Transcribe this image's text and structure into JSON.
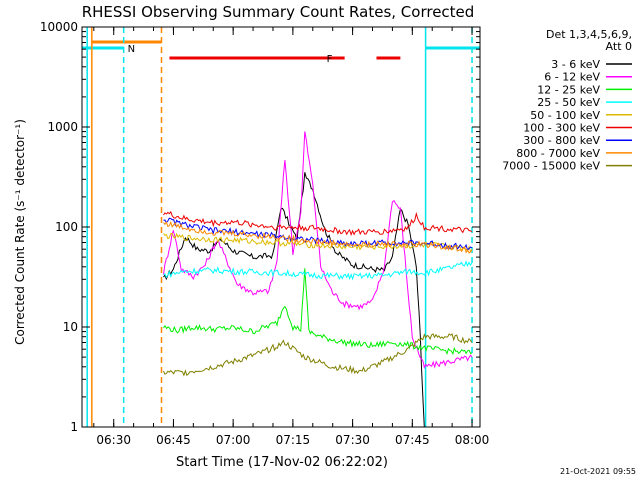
{
  "chart_data": {
    "type": "line",
    "title": "RHESSI Observing Summary Count Rates, Corrected",
    "xlabel": "Start Time (17-Nov-02 06:22:02)",
    "ylabel": "Corrected Count Rate (s⁻¹ detector⁻¹)",
    "yscale": "log",
    "ylim": [
      1,
      10000
    ],
    "xlim": [
      "06:22:02",
      "08:02:00"
    ],
    "x_ticks": [
      "06:30",
      "06:45",
      "07:00",
      "07:15",
      "07:30",
      "07:45",
      "08:00"
    ],
    "y_ticks": [
      "1",
      "10",
      "100",
      "1000",
      "10000"
    ],
    "grid": false,
    "legend_position": "right",
    "legend_header": [
      "Det 1,3,4,5,6,9,",
      "Att 0"
    ],
    "footer": "21-Oct-2021 09:55",
    "flags": [
      {
        "label": "N",
        "color": "#00e5ee",
        "ranges": [
          [
            "06:22:02",
            "06:32:30"
          ],
          [
            "07:48:20",
            "08:02:00"
          ]
        ]
      },
      {
        "label": "F",
        "color": "#ee0000",
        "ranges": [
          [
            "06:44:00",
            "07:28:00"
          ],
          [
            "07:36:00",
            "07:42:00"
          ]
        ]
      },
      {
        "label": "",
        "color": "#ff8800",
        "ranges": [
          [
            "06:24:30",
            "06:42:00"
          ]
        ]
      }
    ],
    "markers": [
      {
        "time": "06:23:20",
        "color": "#00e5ee",
        "style": "solid"
      },
      {
        "time": "06:24:30",
        "color": "#ff8800",
        "style": "solid"
      },
      {
        "time": "06:32:30",
        "color": "#00e5ee",
        "style": "dashed"
      },
      {
        "time": "06:42:00",
        "color": "#ff8800",
        "style": "dashed"
      },
      {
        "time": "07:48:20",
        "color": "#00e5ee",
        "style": "solid"
      },
      {
        "time": "08:00:00",
        "color": "#00e5ee",
        "style": "dashed"
      }
    ],
    "series": [
      {
        "name": "3 - 6 keV",
        "color": "#000000",
        "points": [
          [
            "06:42:30",
            30
          ],
          [
            "06:45",
            38
          ],
          [
            "06:48",
            80
          ],
          [
            "06:51",
            60
          ],
          [
            "06:54",
            58
          ],
          [
            "06:57",
            75
          ],
          [
            "07:00",
            58
          ],
          [
            "07:05",
            50
          ],
          [
            "07:10",
            52
          ],
          [
            "07:12",
            160
          ],
          [
            "07:14",
            110
          ],
          [
            "07:16",
            75
          ],
          [
            "07:18",
            330
          ],
          [
            "07:20",
            240
          ],
          [
            "07:23",
            95
          ],
          [
            "07:26",
            55
          ],
          [
            "07:30",
            42
          ],
          [
            "07:35",
            38
          ],
          [
            "07:38",
            37
          ],
          [
            "07:40",
            50
          ],
          [
            "07:42",
            150
          ],
          [
            "07:44",
            105
          ],
          [
            "07:46",
            40
          ],
          [
            "07:47",
            8
          ],
          [
            "07:48",
            1
          ]
        ]
      },
      {
        "name": "6 - 12 keV",
        "color": "#ff00ff",
        "points": [
          [
            "06:42:30",
            35
          ],
          [
            "06:45",
            95
          ],
          [
            "06:47",
            38
          ],
          [
            "06:50",
            32
          ],
          [
            "06:53",
            42
          ],
          [
            "06:56",
            75
          ],
          [
            "06:58",
            50
          ],
          [
            "07:01",
            27
          ],
          [
            "07:05",
            22
          ],
          [
            "07:09",
            23
          ],
          [
            "07:11",
            45
          ],
          [
            "07:13",
            480
          ],
          [
            "07:15",
            55
          ],
          [
            "07:17",
            140
          ],
          [
            "07:18",
            900
          ],
          [
            "07:20",
            260
          ],
          [
            "07:22",
            40
          ],
          [
            "07:25",
            22
          ],
          [
            "07:28",
            17
          ],
          [
            "07:32",
            16
          ],
          [
            "07:35",
            18
          ],
          [
            "07:38",
            40
          ],
          [
            "07:40",
            190
          ],
          [
            "07:42",
            150
          ],
          [
            "07:45",
            8
          ],
          [
            "07:47",
            5
          ],
          [
            "07:48",
            4
          ],
          [
            "08:00",
            5
          ]
        ]
      },
      {
        "name": "12 - 25 keV",
        "color": "#00ee00",
        "points": [
          [
            "06:42:30",
            10
          ],
          [
            "06:46",
            9.2
          ],
          [
            "06:50",
            10
          ],
          [
            "06:55",
            9.5
          ],
          [
            "07:00",
            9.8
          ],
          [
            "07:05",
            9
          ],
          [
            "07:08",
            10
          ],
          [
            "07:11",
            11
          ],
          [
            "07:13",
            17
          ],
          [
            "07:15",
            10
          ],
          [
            "07:17",
            9.5
          ],
          [
            "07:18",
            40
          ],
          [
            "07:19",
            9
          ],
          [
            "07:22",
            8
          ],
          [
            "07:28",
            7
          ],
          [
            "07:35",
            6.5
          ],
          [
            "07:40",
            7
          ],
          [
            "07:45",
            6.5
          ],
          [
            "07:50",
            6
          ],
          [
            "08:00",
            5.5
          ]
        ]
      },
      {
        "name": "25 - 50 keV",
        "color": "#00ffff",
        "points": [
          [
            "06:42:30",
            33
          ],
          [
            "06:48",
            36
          ],
          [
            "06:55",
            37
          ],
          [
            "07:00",
            36
          ],
          [
            "07:10",
            35
          ],
          [
            "07:20",
            33
          ],
          [
            "07:30",
            32
          ],
          [
            "07:38",
            33
          ],
          [
            "07:44",
            36
          ],
          [
            "07:48",
            35
          ],
          [
            "07:52",
            37
          ],
          [
            "08:00",
            44
          ]
        ]
      },
      {
        "name": "50 - 100 keV",
        "color": "#ddbb00",
        "points": [
          [
            "06:42:30",
            82
          ],
          [
            "06:48",
            78
          ],
          [
            "06:55",
            75
          ],
          [
            "07:00",
            74
          ],
          [
            "07:10",
            70
          ],
          [
            "07:20",
            66
          ],
          [
            "07:30",
            63
          ],
          [
            "07:40",
            64
          ],
          [
            "07:50",
            66
          ],
          [
            "08:00",
            60
          ]
        ]
      },
      {
        "name": "100 - 300 keV",
        "color": "#ee0000",
        "points": [
          [
            "06:42:30",
            140
          ],
          [
            "06:48",
            120
          ],
          [
            "06:55",
            110
          ],
          [
            "07:00",
            112
          ],
          [
            "07:10",
            100
          ],
          [
            "07:20",
            98
          ],
          [
            "07:30",
            88
          ],
          [
            "07:38",
            90
          ],
          [
            "07:44",
            98
          ],
          [
            "07:46",
            130
          ],
          [
            "07:48",
            100
          ],
          [
            "07:55",
            95
          ],
          [
            "08:00",
            90
          ]
        ]
      },
      {
        "name": "300 - 800 keV",
        "color": "#0000ff",
        "points": [
          [
            "06:42:30",
            120
          ],
          [
            "06:48",
            105
          ],
          [
            "06:55",
            92
          ],
          [
            "07:00",
            90
          ],
          [
            "07:10",
            82
          ],
          [
            "07:20",
            74
          ],
          [
            "07:30",
            68
          ],
          [
            "07:40",
            70
          ],
          [
            "07:50",
            68
          ],
          [
            "08:00",
            62
          ]
        ]
      },
      {
        "name": "800 - 7000 keV",
        "color": "#ff8800",
        "points": [
          [
            "06:42:30",
            110
          ],
          [
            "06:48",
            98
          ],
          [
            "06:55",
            88
          ],
          [
            "07:00",
            86
          ],
          [
            "07:10",
            80
          ],
          [
            "07:20",
            72
          ],
          [
            "07:30",
            66
          ],
          [
            "07:40",
            68
          ],
          [
            "07:50",
            66
          ],
          [
            "08:00",
            58
          ]
        ]
      },
      {
        "name": "7000 - 15000 keV",
        "color": "#808000",
        "points": [
          [
            "06:42:30",
            3.5
          ],
          [
            "06:48",
            3.5
          ],
          [
            "06:55",
            4
          ],
          [
            "07:00",
            4.5
          ],
          [
            "07:07",
            5.5
          ],
          [
            "07:13",
            7
          ],
          [
            "07:18",
            5
          ],
          [
            "07:25",
            4
          ],
          [
            "07:32",
            3.6
          ],
          [
            "07:38",
            4.5
          ],
          [
            "07:44",
            6
          ],
          [
            "07:48",
            8
          ],
          [
            "07:55",
            8
          ],
          [
            "08:00",
            7
          ]
        ]
      }
    ]
  }
}
